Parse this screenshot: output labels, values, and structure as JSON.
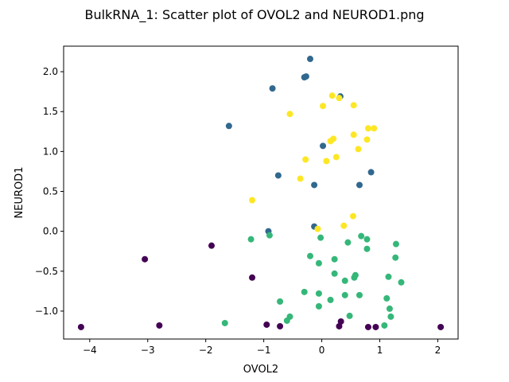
{
  "chart_data": {
    "type": "scatter",
    "title": "BulkRNA_1: Scatter plot of OVOL2 and NEUROD1.png",
    "xlabel": "OVOL2",
    "ylabel": "NEUROD1",
    "xlim": [
      -4.45,
      2.35
    ],
    "ylim": [
      -1.35,
      2.32
    ],
    "xticks": [
      -4,
      -3,
      -2,
      -1,
      0,
      1,
      2
    ],
    "xtick_labels": [
      "−4",
      "−3",
      "−2",
      "−1",
      "0",
      "1",
      "2"
    ],
    "yticks": [
      -1.0,
      -0.5,
      0.0,
      0.5,
      1.0,
      1.5,
      2.0
    ],
    "ytick_labels": [
      "−1.0",
      "−0.5",
      "0.0",
      "0.5",
      "1.0",
      "1.5",
      "2.0"
    ],
    "grid": false,
    "series": [
      {
        "color": "#440154",
        "points": [
          [
            -4.15,
            -1.2
          ],
          [
            -3.05,
            -0.35
          ],
          [
            -2.8,
            -1.18
          ],
          [
            -1.9,
            -0.18
          ],
          [
            -1.2,
            -0.58
          ],
          [
            -0.95,
            -1.17
          ],
          [
            -0.72,
            -1.19
          ],
          [
            0.3,
            -1.19
          ],
          [
            0.33,
            -1.13
          ],
          [
            0.8,
            -1.2
          ],
          [
            0.93,
            -1.2
          ],
          [
            2.05,
            -1.2
          ]
        ]
      },
      {
        "color": "#31688e",
        "points": [
          [
            -0.2,
            2.16
          ],
          [
            -0.85,
            1.79
          ],
          [
            -0.3,
            1.93
          ],
          [
            -0.27,
            1.94
          ],
          [
            0.32,
            1.69
          ],
          [
            -1.6,
            1.32
          ],
          [
            0.02,
            1.07
          ],
          [
            -0.75,
            0.7
          ],
          [
            0.85,
            0.74
          ],
          [
            -0.13,
            0.58
          ],
          [
            0.65,
            0.58
          ],
          [
            -0.92,
            0.0
          ],
          [
            -0.13,
            0.06
          ]
        ]
      },
      {
        "color": "#35b779",
        "points": [
          [
            -1.22,
            -0.1
          ],
          [
            -0.9,
            -0.05
          ],
          [
            -0.02,
            -0.08
          ],
          [
            0.45,
            -0.14
          ],
          [
            0.68,
            -0.06
          ],
          [
            0.78,
            -0.1
          ],
          [
            1.28,
            -0.16
          ],
          [
            -0.2,
            -0.31
          ],
          [
            -0.05,
            -0.4
          ],
          [
            0.22,
            -0.35
          ],
          [
            0.78,
            -0.22
          ],
          [
            1.27,
            -0.33
          ],
          [
            0.22,
            -0.53
          ],
          [
            0.58,
            -0.55
          ],
          [
            0.56,
            -0.58
          ],
          [
            0.4,
            -0.62
          ],
          [
            1.15,
            -0.57
          ],
          [
            1.37,
            -0.64
          ],
          [
            -0.72,
            -0.88
          ],
          [
            -0.3,
            -0.76
          ],
          [
            -0.05,
            -0.78
          ],
          [
            0.4,
            -0.8
          ],
          [
            0.65,
            -0.8
          ],
          [
            -0.55,
            -1.07
          ],
          [
            -0.05,
            -0.94
          ],
          [
            0.15,
            -0.86
          ],
          [
            1.12,
            -0.84
          ],
          [
            -0.6,
            -1.12
          ],
          [
            -1.67,
            -1.15
          ],
          [
            0.48,
            -1.06
          ],
          [
            1.17,
            -0.97
          ],
          [
            1.19,
            -1.07
          ],
          [
            1.08,
            -1.18
          ]
        ]
      },
      {
        "color": "#fde725",
        "points": [
          [
            0.18,
            1.7
          ],
          [
            0.3,
            1.67
          ],
          [
            0.02,
            1.57
          ],
          [
            0.55,
            1.58
          ],
          [
            -0.55,
            1.47
          ],
          [
            0.8,
            1.29
          ],
          [
            0.9,
            1.29
          ],
          [
            0.55,
            1.21
          ],
          [
            0.78,
            1.15
          ],
          [
            0.15,
            1.13
          ],
          [
            0.2,
            1.16
          ],
          [
            0.63,
            1.03
          ],
          [
            -0.28,
            0.9
          ],
          [
            0.08,
            0.88
          ],
          [
            0.25,
            0.93
          ],
          [
            -0.37,
            0.66
          ],
          [
            -1.2,
            0.39
          ],
          [
            0.54,
            0.19
          ],
          [
            0.38,
            0.07
          ],
          [
            -0.07,
            0.03
          ]
        ]
      }
    ]
  }
}
